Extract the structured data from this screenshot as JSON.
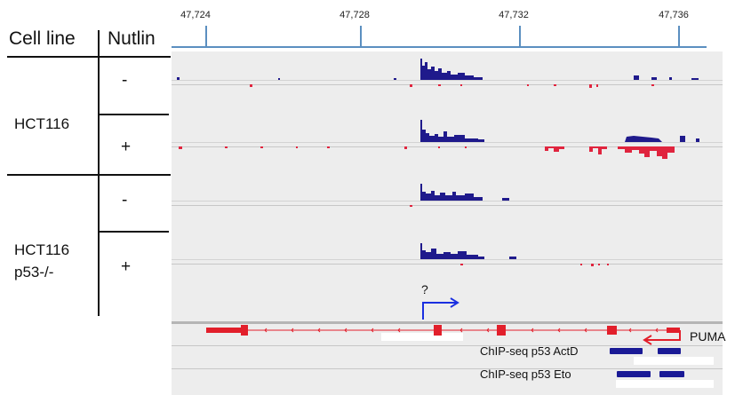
{
  "headers": {
    "cell_line": "Cell line",
    "nutlin": "Nutlin"
  },
  "groups": [
    {
      "label": "HCT116",
      "rows": [
        "-",
        "+"
      ]
    },
    {
      "label": "HCT116\np53-/-",
      "rows": [
        "-",
        "+"
      ]
    }
  ],
  "ruler": {
    "ticks": [
      "47,724",
      "47,728",
      "47,732",
      "47,736"
    ]
  },
  "tss_label": "?",
  "gene": {
    "name": "PUMA"
  },
  "chip_tracks": [
    {
      "label": "ChIP-seq p53 ActD"
    },
    {
      "label": "ChIP-seq p53 Eto"
    }
  ],
  "colors": {
    "plus_strand": "#1f1a8c",
    "minus_strand": "#e0243e",
    "gene": "#e21f2b",
    "tss_arrow": "#1a2fe0",
    "chip": "#1a1a96",
    "ruler": "#5b8fc0"
  }
}
